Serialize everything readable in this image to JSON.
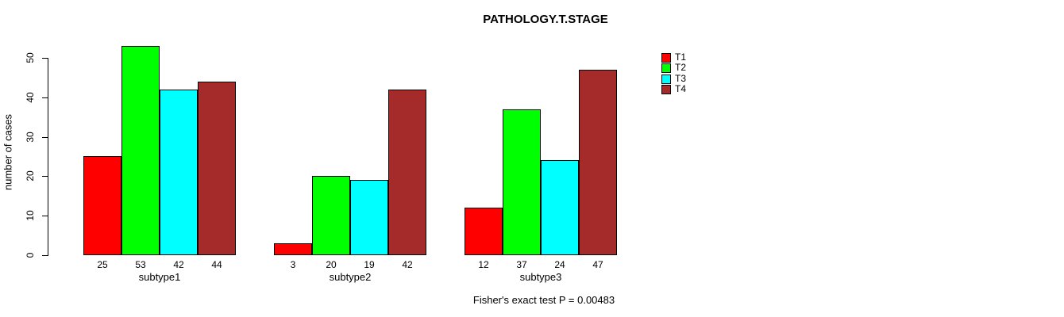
{
  "chart_data": {
    "type": "bar",
    "title": "PATHOLOGY.T.STAGE",
    "ylabel": "number of cases",
    "xlabel": "",
    "categories": [
      "subtype1",
      "subtype2",
      "subtype3"
    ],
    "series": [
      {
        "name": "T1",
        "color": "#FF0000",
        "values": [
          25,
          3,
          12
        ]
      },
      {
        "name": "T2",
        "color": "#00FF00",
        "values": [
          53,
          20,
          37
        ]
      },
      {
        "name": "T3",
        "color": "#00FFFF",
        "values": [
          42,
          19,
          24
        ]
      },
      {
        "name": "T4",
        "color": "#A52A2A",
        "values": [
          44,
          42,
          47
        ]
      }
    ],
    "yticks": [
      0,
      10,
      20,
      30,
      40,
      50
    ],
    "ylim": [
      0,
      53
    ],
    "bar_value_labels": true,
    "grid": false,
    "legend_position": "top-right",
    "annotation": "Fisher's exact test P = 0.00483"
  }
}
